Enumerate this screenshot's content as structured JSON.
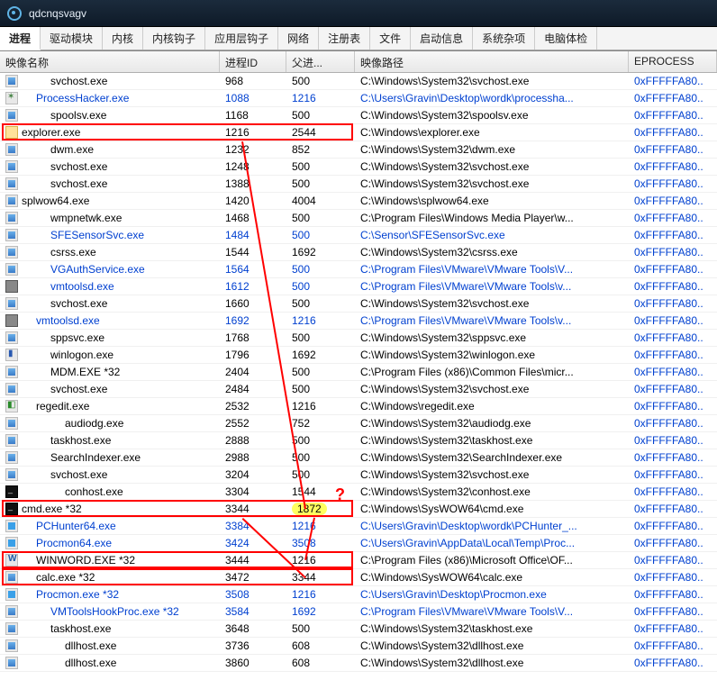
{
  "window": {
    "title": "qdcnqsvagv"
  },
  "tabs": [
    "进程",
    "驱动模块",
    "内核",
    "内核钩子",
    "应用层钩子",
    "网络",
    "注册表",
    "文件",
    "启动信息",
    "系统杂项",
    "电脑体检"
  ],
  "activeTabIndex": 0,
  "columns": [
    {
      "key": "name",
      "label": "映像名称"
    },
    {
      "key": "pid",
      "label": "进程ID"
    },
    {
      "key": "ppid",
      "label": "父进..."
    },
    {
      "key": "path",
      "label": "映像路径"
    },
    {
      "key": "eproc",
      "label": "EPROCESS"
    }
  ],
  "rows": [
    {
      "icon": "win",
      "indent": 2,
      "name": "svchost.exe",
      "pid": "968",
      "ppid": "500",
      "path": "C:\\Windows\\System32\\svchost.exe",
      "eproc": "0xFFFFFA80..",
      "blue": false
    },
    {
      "icon": "gear",
      "indent": 1,
      "name": "ProcessHacker.exe",
      "pid": "1088",
      "ppid": "1216",
      "path": "C:\\Users\\Gravin\\Desktop\\wordk\\processha...",
      "eproc": "0xFFFFFA80..",
      "blue": true
    },
    {
      "icon": "win",
      "indent": 2,
      "name": "spoolsv.exe",
      "pid": "1168",
      "ppid": "500",
      "path": "C:\\Windows\\System32\\spoolsv.exe",
      "eproc": "0xFFFFFA80..",
      "blue": false
    },
    {
      "icon": "folder",
      "indent": 0,
      "name": "explorer.exe",
      "pid": "1216",
      "ppid": "2544",
      "path": "C:\\Windows\\explorer.exe",
      "eproc": "0xFFFFFA80..",
      "blue": false
    },
    {
      "icon": "win",
      "indent": 2,
      "name": "dwm.exe",
      "pid": "1232",
      "ppid": "852",
      "path": "C:\\Windows\\System32\\dwm.exe",
      "eproc": "0xFFFFFA80..",
      "blue": false
    },
    {
      "icon": "win",
      "indent": 2,
      "name": "svchost.exe",
      "pid": "1248",
      "ppid": "500",
      "path": "C:\\Windows\\System32\\svchost.exe",
      "eproc": "0xFFFFFA80..",
      "blue": false
    },
    {
      "icon": "win",
      "indent": 2,
      "name": "svchost.exe",
      "pid": "1388",
      "ppid": "500",
      "path": "C:\\Windows\\System32\\svchost.exe",
      "eproc": "0xFFFFFA80..",
      "blue": false
    },
    {
      "icon": "win",
      "indent": 0,
      "name": "splwow64.exe",
      "pid": "1420",
      "ppid": "4004",
      "path": "C:\\Windows\\splwow64.exe",
      "eproc": "0xFFFFFA80..",
      "blue": false
    },
    {
      "icon": "win",
      "indent": 2,
      "name": "wmpnetwk.exe",
      "pid": "1468",
      "ppid": "500",
      "path": "C:\\Program Files\\Windows Media Player\\w...",
      "eproc": "0xFFFFFA80..",
      "blue": false
    },
    {
      "icon": "win",
      "indent": 2,
      "name": "SFESensorSvc.exe",
      "pid": "1484",
      "ppid": "500",
      "path": "C:\\Sensor\\SFESensorSvc.exe",
      "eproc": "0xFFFFFA80..",
      "blue": true
    },
    {
      "icon": "win",
      "indent": 2,
      "name": "csrss.exe",
      "pid": "1544",
      "ppid": "1692",
      "path": "C:\\Windows\\System32\\csrss.exe",
      "eproc": "0xFFFFFA80..",
      "blue": false
    },
    {
      "icon": "win",
      "indent": 2,
      "name": "VGAuthService.exe",
      "pid": "1564",
      "ppid": "500",
      "path": "C:\\Program Files\\VMware\\VMware Tools\\V...",
      "eproc": "0xFFFFFA80..",
      "blue": true
    },
    {
      "icon": "vmt",
      "indent": 2,
      "name": "vmtoolsd.exe",
      "pid": "1612",
      "ppid": "500",
      "path": "C:\\Program Files\\VMware\\VMware Tools\\v...",
      "eproc": "0xFFFFFA80..",
      "blue": true
    },
    {
      "icon": "win",
      "indent": 2,
      "name": "svchost.exe",
      "pid": "1660",
      "ppid": "500",
      "path": "C:\\Windows\\System32\\svchost.exe",
      "eproc": "0xFFFFFA80..",
      "blue": false
    },
    {
      "icon": "vmt",
      "indent": 1,
      "name": "vmtoolsd.exe",
      "pid": "1692",
      "ppid": "1216",
      "path": "C:\\Program Files\\VMware\\VMware Tools\\v...",
      "eproc": "0xFFFFFA80..",
      "blue": true
    },
    {
      "icon": "win",
      "indent": 2,
      "name": "sppsvc.exe",
      "pid": "1768",
      "ppid": "500",
      "path": "C:\\Windows\\System32\\sppsvc.exe",
      "eproc": "0xFFFFFA80..",
      "blue": false
    },
    {
      "icon": "wl",
      "indent": 2,
      "name": "winlogon.exe",
      "pid": "1796",
      "ppid": "1692",
      "path": "C:\\Windows\\System32\\winlogon.exe",
      "eproc": "0xFFFFFA80..",
      "blue": false
    },
    {
      "icon": "win",
      "indent": 2,
      "name": "MDM.EXE *32",
      "pid": "2404",
      "ppid": "500",
      "path": "C:\\Program Files (x86)\\Common Files\\micr...",
      "eproc": "0xFFFFFA80..",
      "blue": false
    },
    {
      "icon": "win",
      "indent": 2,
      "name": "svchost.exe",
      "pid": "2484",
      "ppid": "500",
      "path": "C:\\Windows\\System32\\svchost.exe",
      "eproc": "0xFFFFFA80..",
      "blue": false
    },
    {
      "icon": "reg",
      "indent": 1,
      "name": "regedit.exe",
      "pid": "2532",
      "ppid": "1216",
      "path": "C:\\Windows\\regedit.exe",
      "eproc": "0xFFFFFA80..",
      "blue": false
    },
    {
      "icon": "win",
      "indent": 3,
      "name": "audiodg.exe",
      "pid": "2552",
      "ppid": "752",
      "path": "C:\\Windows\\System32\\audiodg.exe",
      "eproc": "0xFFFFFA80..",
      "blue": false
    },
    {
      "icon": "win",
      "indent": 2,
      "name": "taskhost.exe",
      "pid": "2888",
      "ppid": "500",
      "path": "C:\\Windows\\System32\\taskhost.exe",
      "eproc": "0xFFFFFA80..",
      "blue": false
    },
    {
      "icon": "win",
      "indent": 2,
      "name": "SearchIndexer.exe",
      "pid": "2988",
      "ppid": "500",
      "path": "C:\\Windows\\System32\\SearchIndexer.exe",
      "eproc": "0xFFFFFA80..",
      "blue": false
    },
    {
      "icon": "win",
      "indent": 2,
      "name": "svchost.exe",
      "pid": "3204",
      "ppid": "500",
      "path": "C:\\Windows\\System32\\svchost.exe",
      "eproc": "0xFFFFFA80..",
      "blue": false
    },
    {
      "icon": "cmd",
      "indent": 3,
      "name": "conhost.exe",
      "pid": "3304",
      "ppid": "1544",
      "path": "C:\\Windows\\System32\\conhost.exe",
      "eproc": "0xFFFFFA80..",
      "blue": false
    },
    {
      "icon": "cmd",
      "indent": 0,
      "name": "cmd.exe *32",
      "pid": "3344",
      "ppid": "1872",
      "path": "C:\\Windows\\SysWOW64\\cmd.exe",
      "eproc": "0xFFFFFA80..",
      "blue": false,
      "ppid_hl": true
    },
    {
      "icon": "blue",
      "indent": 1,
      "name": "PCHunter64.exe",
      "pid": "3384",
      "ppid": "1216",
      "path": "C:\\Users\\Gravin\\Desktop\\wordk\\PCHunter_...",
      "eproc": "0xFFFFFA80..",
      "blue": true
    },
    {
      "icon": "blue",
      "indent": 1,
      "name": "Procmon64.exe",
      "pid": "3424",
      "ppid": "3508",
      "path": "C:\\Users\\Gravin\\AppData\\Local\\Temp\\Proc...",
      "eproc": "0xFFFFFA80..",
      "blue": true
    },
    {
      "icon": "word",
      "indent": 1,
      "name": "WINWORD.EXE *32",
      "pid": "3444",
      "ppid": "1216",
      "path": "C:\\Program Files (x86)\\Microsoft Office\\OF...",
      "eproc": "0xFFFFFA80..",
      "blue": false
    },
    {
      "icon": "win",
      "indent": 1,
      "name": "calc.exe *32",
      "pid": "3472",
      "ppid": "3344",
      "path": "C:\\Windows\\SysWOW64\\calc.exe",
      "eproc": "0xFFFFFA80..",
      "blue": false
    },
    {
      "icon": "blue",
      "indent": 1,
      "name": "Procmon.exe *32",
      "pid": "3508",
      "ppid": "1216",
      "path": "C:\\Users\\Gravin\\Desktop\\Procmon.exe",
      "eproc": "0xFFFFFA80..",
      "blue": true
    },
    {
      "icon": "win",
      "indent": 2,
      "name": "VMToolsHookProc.exe *32",
      "pid": "3584",
      "ppid": "1692",
      "path": "C:\\Program Files\\VMware\\VMware Tools\\V...",
      "eproc": "0xFFFFFA80..",
      "blue": true
    },
    {
      "icon": "win",
      "indent": 2,
      "name": "taskhost.exe",
      "pid": "3648",
      "ppid": "500",
      "path": "C:\\Windows\\System32\\taskhost.exe",
      "eproc": "0xFFFFFA80..",
      "blue": false
    },
    {
      "icon": "win",
      "indent": 3,
      "name": "dllhost.exe",
      "pid": "3736",
      "ppid": "608",
      "path": "C:\\Windows\\System32\\dllhost.exe",
      "eproc": "0xFFFFFA80..",
      "blue": false
    },
    {
      "icon": "win",
      "indent": 3,
      "name": "dllhost.exe",
      "pid": "3860",
      "ppid": "608",
      "path": "C:\\Windows\\System32\\dllhost.exe",
      "eproc": "0xFFFFFA80..",
      "blue": false
    }
  ],
  "annotations": {
    "question_mark": "?",
    "boxes_comment": "red boxes around rows: explorer(3), cmd(25), winword(28), calc(29)",
    "lines_comment": "diagonal red lines from explorer ppid down to cmd, and between cmd/winword/calc rows"
  }
}
